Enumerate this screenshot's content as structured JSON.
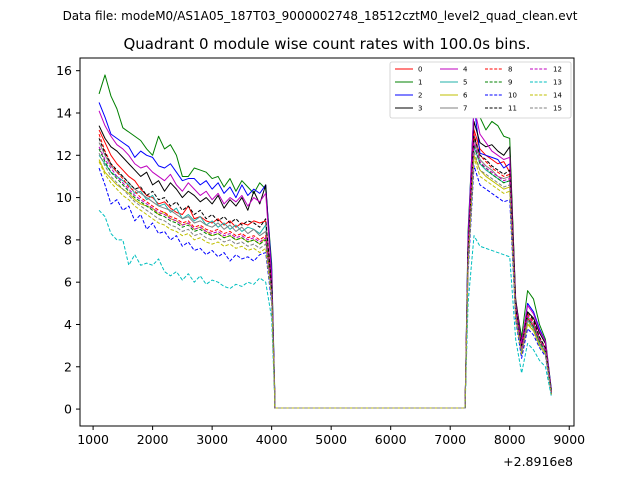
{
  "chart_data": {
    "type": "line",
    "suptitle": "Data file: modeM0/AS1A05_187T03_9000002748_18512cztM0_level2_quad_clean.evt",
    "title": "Quadrant 0 module wise count rates with 100.0s bins.",
    "xlabel": "",
    "ylabel": "",
    "x_offset_label": "+2.8916e8",
    "xlim": [
      780,
      9080
    ],
    "ylim": [
      -0.8,
      16.6
    ],
    "xticks": [
      1000,
      2000,
      3000,
      4000,
      5000,
      6000,
      7000,
      8000,
      9000
    ],
    "yticks": [
      0,
      2,
      4,
      6,
      8,
      10,
      12,
      14,
      16
    ],
    "grid": false,
    "legend_position": "top-right",
    "segments": [
      {
        "x_start": 1100,
        "x_end": 3900,
        "step": 100
      },
      {
        "x_start": 4000,
        "x_end": 4050,
        "step": 50
      },
      {
        "x_start": 4050,
        "x_end": 7250,
        "step": 3200
      },
      {
        "x_start": 7300,
        "x_end": 8700,
        "step": 100
      }
    ],
    "series": [
      {
        "name": "0",
        "color": "#ff0000",
        "dash": "solid",
        "a": [
          13.2,
          12.6,
          12.0,
          11.6,
          11.3,
          11.0,
          10.8,
          10.4,
          10.1,
          10.0,
          9.7,
          9.8,
          9.5,
          9.3,
          9.2,
          9.6,
          9.0,
          9.1,
          8.9,
          8.8,
          9.0,
          8.7,
          8.9,
          8.6,
          8.8,
          8.7,
          8.9,
          8.8,
          8.9
        ],
        "b": [
          5.8,
          0.9
        ],
        "c": [
          0.05,
          0.05
        ],
        "d": [
          7.5,
          13.2,
          12.3,
          12.0,
          11.8,
          11.6,
          11.7,
          11.2,
          4.8,
          2.8,
          4.3,
          3.9,
          3.2,
          2.9,
          0.8
        ]
      },
      {
        "name": "1",
        "color": "#008000",
        "dash": "solid",
        "a": [
          14.9,
          15.8,
          14.8,
          14.2,
          13.3,
          13.1,
          12.9,
          12.7,
          12.3,
          12.0,
          12.9,
          12.3,
          12.5,
          12.0,
          11.0,
          11.0,
          11.4,
          11.3,
          11.2,
          10.9,
          11.0,
          10.5,
          10.9,
          10.3,
          10.8,
          10.5,
          10.2,
          10.7,
          10.4
        ],
        "b": [
          6.9,
          1.1
        ],
        "c": [
          0.05,
          0.05
        ],
        "d": [
          8.4,
          14.2,
          13.8,
          13.2,
          13.6,
          13.4,
          12.9,
          12.8,
          5.1,
          3.4,
          5.6,
          5.2,
          4.0,
          3.3,
          0.9
        ]
      },
      {
        "name": "2",
        "color": "#0000ff",
        "dash": "solid",
        "a": [
          14.5,
          13.8,
          13.0,
          12.8,
          12.6,
          12.4,
          11.9,
          12.2,
          12.0,
          11.9,
          11.5,
          11.4,
          11.6,
          11.2,
          10.8,
          10.9,
          10.9,
          10.6,
          10.8,
          10.4,
          10.7,
          10.2,
          10.5,
          10.0,
          10.6,
          10.1,
          10.4,
          10.2,
          10.6
        ],
        "b": [
          6.6,
          1.0
        ],
        "c": [
          0.05,
          0.05
        ],
        "d": [
          8.1,
          14.4,
          12.1,
          12.0,
          11.9,
          11.8,
          11.4,
          11.6,
          4.9,
          3.0,
          5.0,
          4.6,
          3.8,
          3.2,
          0.9
        ]
      },
      {
        "name": "3",
        "color": "#000000",
        "dash": "solid",
        "a": [
          13.4,
          12.8,
          12.4,
          12.2,
          11.9,
          11.6,
          11.3,
          11.0,
          11.2,
          10.6,
          10.8,
          10.3,
          10.7,
          10.4,
          10.0,
          10.3,
          10.1,
          9.8,
          10.0,
          9.7,
          10.1,
          9.5,
          9.9,
          9.6,
          10.0,
          9.4,
          10.3,
          9.7,
          10.6
        ],
        "b": [
          6.2,
          0.9
        ],
        "c": [
          0.05,
          0.05
        ],
        "d": [
          7.7,
          13.6,
          12.6,
          12.4,
          12.5,
          12.2,
          12.0,
          12.4,
          5.2,
          3.2,
          4.6,
          4.3,
          3.6,
          3.1,
          0.8
        ]
      },
      {
        "name": "4",
        "color": "#bf00bf",
        "dash": "solid",
        "a": [
          14.1,
          13.4,
          12.9,
          12.5,
          12.3,
          12.0,
          11.6,
          11.4,
          11.5,
          11.2,
          11.0,
          10.8,
          11.1,
          10.6,
          10.3,
          10.7,
          10.4,
          10.1,
          10.3,
          9.9,
          10.2,
          9.7,
          10.0,
          9.8,
          10.1,
          9.6,
          10.0,
          9.8,
          10.2
        ],
        "b": [
          6.3,
          0.9
        ],
        "c": [
          0.05,
          0.05
        ],
        "d": [
          7.9,
          14.3,
          13.0,
          12.6,
          12.2,
          12.0,
          11.8,
          11.9,
          5.0,
          3.1,
          4.9,
          4.5,
          3.7,
          3.2,
          0.8
        ]
      },
      {
        "name": "5",
        "color": "#20b2aa",
        "dash": "solid",
        "a": [
          12.0,
          11.6,
          11.2,
          11.0,
          10.8,
          10.6,
          10.2,
          10.3,
          9.9,
          10.1,
          9.6,
          9.7,
          9.3,
          9.5,
          9.0,
          9.2,
          8.9,
          9.1,
          8.7,
          8.9,
          8.6,
          8.8,
          8.5,
          8.7,
          8.4,
          8.6,
          8.5,
          8.3,
          8.7
        ],
        "b": [
          5.6,
          0.8
        ],
        "c": [
          0.05,
          0.05
        ],
        "d": [
          7.0,
          12.4,
          11.6,
          11.3,
          11.1,
          10.9,
          10.7,
          10.8,
          4.6,
          2.7,
          4.2,
          3.8,
          3.1,
          2.7,
          0.7
        ]
      },
      {
        "name": "6",
        "color": "#bfbf00",
        "dash": "solid",
        "a": [
          11.8,
          11.2,
          10.9,
          10.6,
          10.4,
          10.2,
          9.9,
          9.7,
          9.6,
          9.5,
          9.2,
          9.3,
          9.0,
          8.9,
          8.7,
          8.8,
          8.5,
          8.6,
          8.4,
          8.2,
          8.3,
          8.1,
          8.2,
          8.0,
          8.1,
          7.9,
          8.0,
          7.8,
          8.1
        ],
        "b": [
          5.4,
          0.8
        ],
        "c": [
          0.05,
          0.05
        ],
        "d": [
          6.8,
          12.0,
          11.3,
          11.0,
          10.8,
          10.6,
          10.4,
          10.5,
          4.4,
          2.6,
          4.0,
          3.7,
          3.0,
          2.6,
          0.7
        ]
      },
      {
        "name": "7",
        "color": "#808080",
        "dash": "solid",
        "a": [
          12.6,
          12.0,
          11.5,
          11.2,
          11.0,
          10.7,
          10.4,
          10.2,
          10.0,
          9.8,
          9.6,
          9.5,
          9.4,
          9.2,
          9.0,
          9.1,
          8.8,
          8.9,
          8.7,
          8.6,
          8.8,
          8.5,
          8.7,
          8.4,
          8.6,
          8.3,
          8.5,
          8.2,
          8.4
        ],
        "b": [
          5.7,
          0.8
        ],
        "c": [
          0.05,
          0.05
        ],
        "d": [
          7.2,
          12.8,
          11.8,
          11.5,
          11.3,
          11.0,
          10.9,
          11.0,
          4.7,
          2.8,
          4.4,
          4.0,
          3.3,
          2.8,
          0.7
        ]
      },
      {
        "name": "8",
        "color": "#ff0000",
        "dash": "dashed",
        "a": [
          13.0,
          12.2,
          11.6,
          11.2,
          10.9,
          10.5,
          10.3,
          10.0,
          9.8,
          9.6,
          9.4,
          9.3,
          9.1,
          9.0,
          8.8,
          8.9,
          8.6,
          8.7,
          8.5,
          8.4,
          8.5,
          8.3,
          8.4,
          8.2,
          8.3,
          8.1,
          8.2,
          8.0,
          8.2
        ],
        "b": [
          5.6,
          0.8
        ],
        "c": [
          0.05,
          0.05
        ],
        "d": [
          7.3,
          13.0,
          12.0,
          11.7,
          11.4,
          11.2,
          11.0,
          11.1,
          4.7,
          2.9,
          4.5,
          4.1,
          3.4,
          2.9,
          0.8
        ]
      },
      {
        "name": "9",
        "color": "#008000",
        "dash": "dashed",
        "a": [
          12.3,
          11.7,
          11.2,
          10.9,
          10.6,
          10.3,
          10.0,
          9.8,
          9.6,
          9.4,
          9.2,
          9.1,
          8.9,
          8.8,
          8.6,
          8.7,
          8.4,
          8.5,
          8.3,
          8.2,
          8.3,
          8.1,
          8.2,
          8.0,
          8.1,
          7.9,
          8.0,
          7.8,
          8.0
        ],
        "b": [
          5.5,
          0.8
        ],
        "c": [
          0.05,
          0.05
        ],
        "d": [
          7.0,
          12.5,
          11.6,
          11.4,
          11.1,
          10.9,
          10.7,
          10.8,
          4.5,
          2.7,
          4.3,
          3.9,
          3.2,
          2.7,
          0.7
        ]
      },
      {
        "name": "10",
        "color": "#0000ff",
        "dash": "dashed",
        "a": [
          11.4,
          10.6,
          9.7,
          9.9,
          9.4,
          9.6,
          8.9,
          9.2,
          8.5,
          8.8,
          8.3,
          8.4,
          8.0,
          8.2,
          7.7,
          7.9,
          7.5,
          7.6,
          7.3,
          7.5,
          7.2,
          7.4,
          7.0,
          7.3,
          7.1,
          7.2,
          7.0,
          7.3,
          7.4
        ],
        "b": [
          5.0,
          0.7
        ],
        "c": [
          0.05,
          0.05
        ],
        "d": [
          6.4,
          11.5,
          10.6,
          10.4,
          10.2,
          10.0,
          9.8,
          9.9,
          4.2,
          2.4,
          3.8,
          3.5,
          2.9,
          2.5,
          0.7
        ]
      },
      {
        "name": "11",
        "color": "#000000",
        "dash": "dashed",
        "a": [
          12.8,
          12.1,
          11.6,
          11.3,
          11.0,
          10.7,
          10.4,
          10.5,
          10.1,
          10.3,
          9.9,
          10.0,
          9.6,
          9.8,
          9.4,
          9.6,
          9.2,
          9.4,
          9.0,
          9.2,
          8.9,
          9.1,
          8.8,
          9.0,
          8.7,
          8.9,
          8.8,
          8.6,
          9.0
        ],
        "b": [
          5.8,
          0.9
        ],
        "c": [
          0.05,
          0.05
        ],
        "d": [
          7.4,
          12.9,
          12.0,
          11.8,
          11.5,
          11.3,
          11.1,
          11.3,
          4.8,
          2.9,
          4.6,
          4.2,
          3.4,
          2.9,
          0.8
        ]
      },
      {
        "name": "12",
        "color": "#bf00bf",
        "dash": "dashed",
        "a": [
          12.4,
          11.8,
          11.4,
          11.0,
          10.7,
          10.4,
          10.1,
          9.9,
          9.7,
          9.5,
          9.3,
          9.2,
          9.0,
          8.9,
          8.7,
          8.8,
          8.5,
          8.6,
          8.4,
          8.3,
          8.4,
          8.2,
          8.3,
          8.1,
          8.2,
          8.0,
          8.1,
          7.9,
          8.1
        ],
        "b": [
          5.5,
          0.8
        ],
        "c": [
          0.05,
          0.05
        ],
        "d": [
          7.1,
          12.6,
          11.7,
          11.4,
          11.2,
          11.0,
          10.8,
          10.9,
          4.6,
          2.8,
          4.4,
          4.0,
          3.3,
          2.8,
          0.7
        ]
      },
      {
        "name": "13",
        "color": "#00bfbf",
        "dash": "dashed",
        "a": [
          9.4,
          9.1,
          8.3,
          8.0,
          8.0,
          6.8,
          7.3,
          6.8,
          6.9,
          6.8,
          7.1,
          6.5,
          6.3,
          6.5,
          6.1,
          6.4,
          6.0,
          6.3,
          5.9,
          6.1,
          6.0,
          5.8,
          5.7,
          5.9,
          5.8,
          6.0,
          5.9,
          6.2,
          6.0
        ],
        "b": [
          4.3,
          0.6
        ],
        "c": [
          0.05,
          0.05
        ],
        "d": [
          5.0,
          8.2,
          7.7,
          7.6,
          7.5,
          7.4,
          7.3,
          7.2,
          3.3,
          1.7,
          3.1,
          2.8,
          2.3,
          2.0,
          0.6
        ]
      },
      {
        "name": "14",
        "color": "#bfbf00",
        "dash": "dashed",
        "a": [
          11.7,
          11.1,
          10.7,
          10.4,
          10.1,
          9.9,
          9.6,
          9.4,
          9.2,
          9.0,
          8.8,
          8.7,
          8.5,
          8.4,
          8.2,
          8.3,
          8.0,
          8.1,
          7.9,
          7.8,
          7.9,
          7.7,
          7.8,
          7.6,
          7.7,
          7.5,
          7.6,
          7.4,
          7.6
        ],
        "b": [
          5.2,
          0.8
        ],
        "c": [
          0.05,
          0.05
        ],
        "d": [
          6.7,
          11.9,
          11.0,
          10.8,
          10.6,
          10.4,
          10.2,
          10.3,
          4.3,
          2.6,
          4.1,
          3.7,
          3.0,
          2.6,
          0.7
        ]
      },
      {
        "name": "15",
        "color": "#808080",
        "dash": "dashed",
        "a": [
          12.1,
          11.5,
          11.0,
          10.7,
          10.4,
          10.1,
          9.8,
          9.6,
          9.4,
          9.2,
          9.0,
          8.9,
          8.7,
          8.6,
          8.4,
          8.5,
          8.2,
          8.3,
          8.1,
          8.0,
          8.1,
          7.9,
          8.0,
          7.8,
          7.9,
          7.7,
          7.8,
          7.6,
          7.8
        ],
        "b": [
          5.4,
          0.8
        ],
        "c": [
          0.05,
          0.05
        ],
        "d": [
          6.9,
          12.2,
          11.3,
          11.1,
          10.9,
          10.7,
          10.5,
          10.6,
          4.5,
          2.7,
          4.2,
          3.8,
          3.1,
          2.7,
          0.7
        ]
      }
    ]
  }
}
